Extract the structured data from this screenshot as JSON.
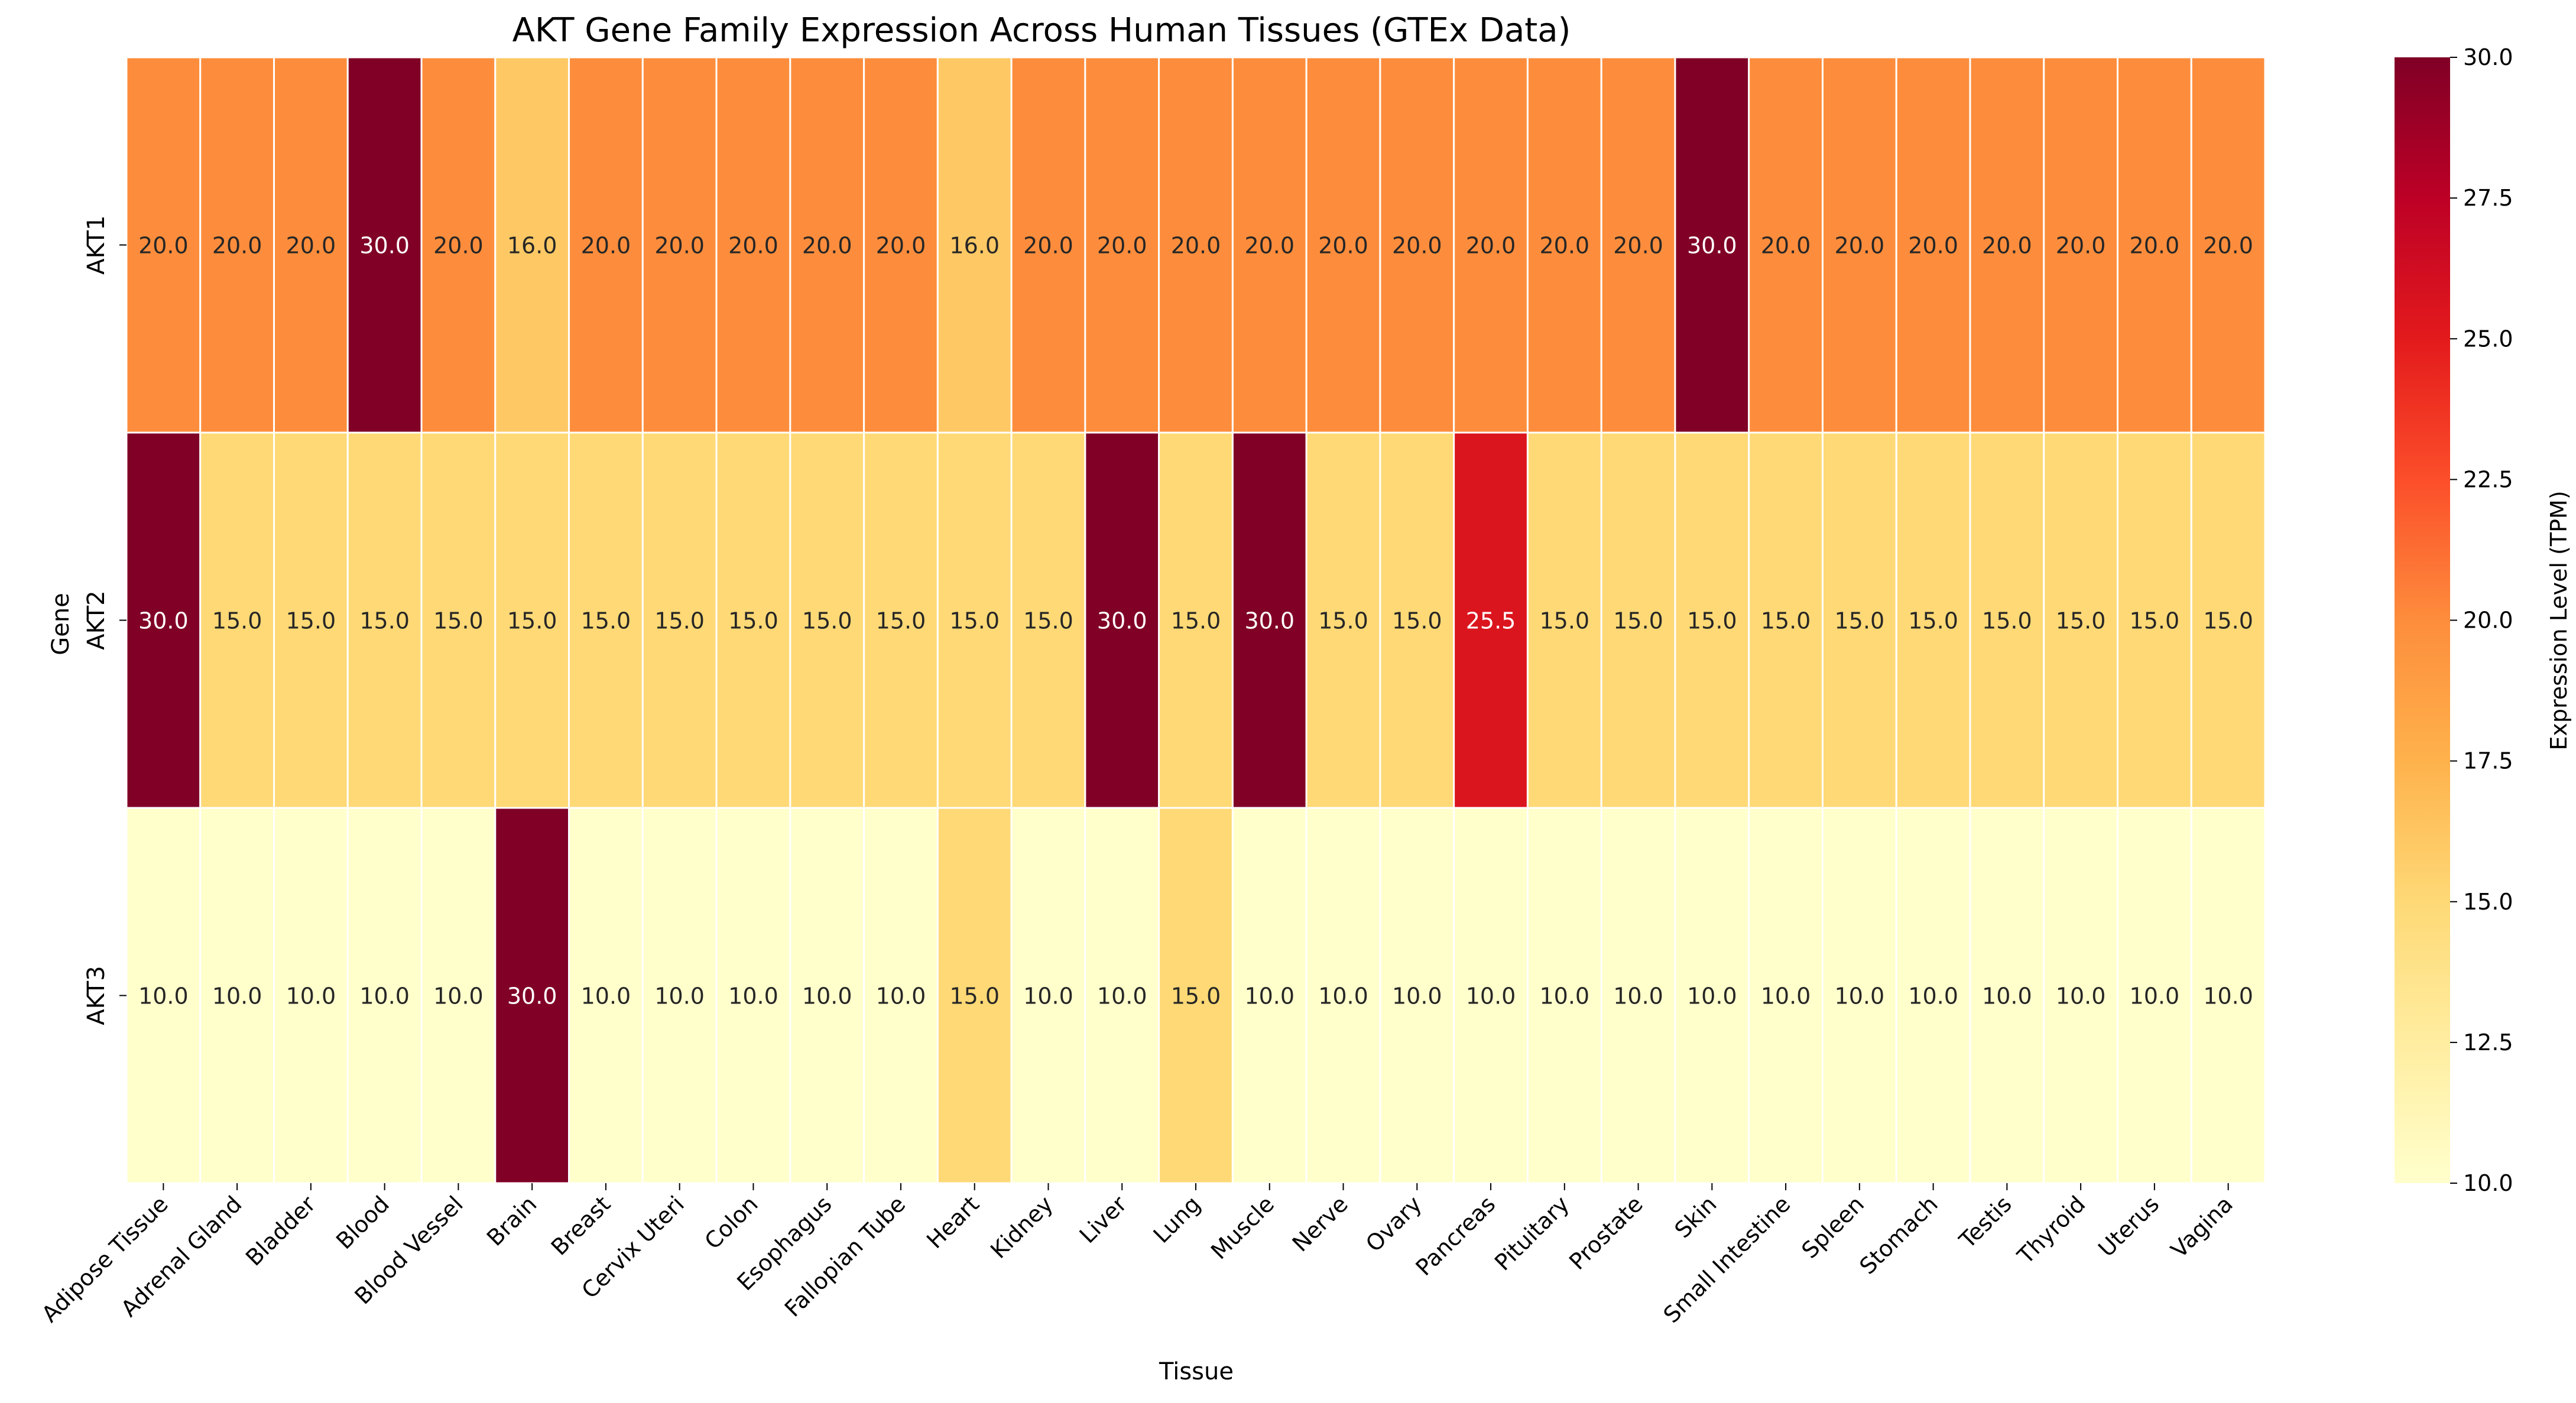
{
  "chart_data": {
    "type": "heatmap",
    "title": "AKT Gene Family Expression Across Human Tissues (GTEx Data)",
    "xlabel": "Tissue",
    "ylabel": "Gene",
    "x": [
      "Adipose Tissue",
      "Adrenal Gland",
      "Bladder",
      "Blood",
      "Blood Vessel",
      "Brain",
      "Breast",
      "Cervix Uteri",
      "Colon",
      "Esophagus",
      "Fallopian Tube",
      "Heart",
      "Kidney",
      "Liver",
      "Lung",
      "Muscle",
      "Nerve",
      "Ovary",
      "Pancreas",
      "Pituitary",
      "Prostate",
      "Skin",
      "Small Intestine",
      "Spleen",
      "Stomach",
      "Testis",
      "Thyroid",
      "Uterus",
      "Vagina"
    ],
    "y": [
      "AKT1",
      "AKT2",
      "AKT3"
    ],
    "values": [
      [
        20.0,
        20.0,
        20.0,
        30.0,
        20.0,
        16.0,
        20.0,
        20.0,
        20.0,
        20.0,
        20.0,
        16.0,
        20.0,
        20.0,
        20.0,
        20.0,
        20.0,
        20.0,
        20.0,
        20.0,
        20.0,
        30.0,
        20.0,
        20.0,
        20.0,
        20.0,
        20.0,
        20.0,
        20.0
      ],
      [
        30.0,
        15.0,
        15.0,
        15.0,
        15.0,
        15.0,
        15.0,
        15.0,
        15.0,
        15.0,
        15.0,
        15.0,
        15.0,
        30.0,
        15.0,
        30.0,
        15.0,
        15.0,
        25.5,
        15.0,
        15.0,
        15.0,
        15.0,
        15.0,
        15.0,
        15.0,
        15.0,
        15.0,
        15.0
      ],
      [
        10.0,
        10.0,
        10.0,
        10.0,
        10.0,
        30.0,
        10.0,
        10.0,
        10.0,
        10.0,
        10.0,
        15.0,
        10.0,
        10.0,
        15.0,
        10.0,
        10.0,
        10.0,
        10.0,
        10.0,
        10.0,
        10.0,
        10.0,
        10.0,
        10.0,
        10.0,
        10.0,
        10.0,
        10.0
      ]
    ],
    "colormap": "YlOrRd",
    "colorbar": {
      "label": "Expression Level (TPM)",
      "range": [
        10.0,
        30.0
      ],
      "ticks": [
        "10.0",
        "12.5",
        "15.0",
        "17.5",
        "20.0",
        "22.5",
        "25.0",
        "27.5",
        "30.0"
      ]
    },
    "cell_labels_format": "0.1f",
    "grid": false,
    "legend": "colorbar-right"
  }
}
